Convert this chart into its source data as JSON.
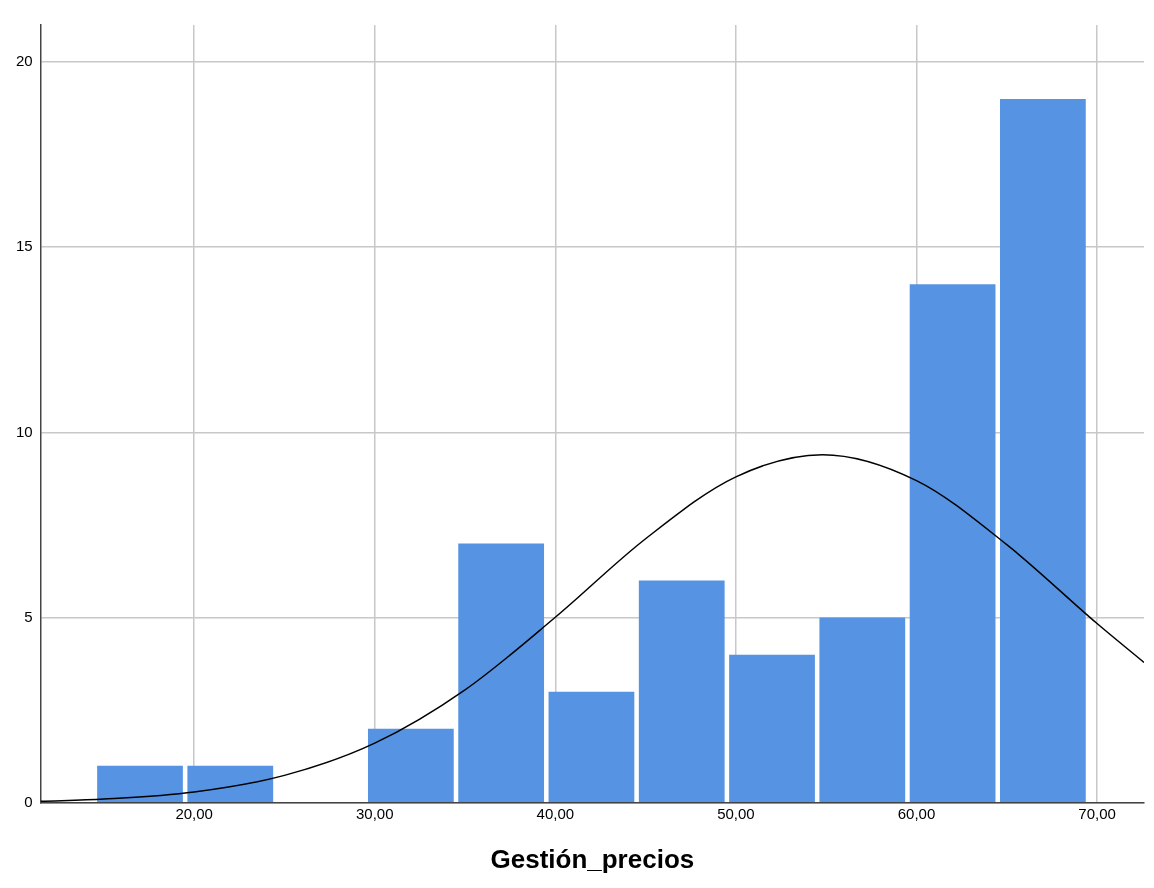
{
  "chart_data": {
    "type": "histogram",
    "xlabel": "Gestión_precios",
    "bins": [
      14.5,
      19.5,
      24.5,
      29.5,
      34.5,
      39.5,
      44.5,
      49.5,
      54.5,
      59.5,
      64.5,
      69.5
    ],
    "values": [
      1,
      1,
      0,
      2,
      7,
      3,
      6,
      4,
      5,
      14,
      19
    ],
    "color": "#5694e3",
    "series": [
      {
        "type": "line",
        "color": "#000000",
        "x": [
          11.5,
          15,
          20,
          25,
          30,
          35,
          40,
          45,
          50,
          54.8,
          60,
          65,
          70,
          72.6
        ],
        "values": [
          0.04,
          0.1,
          0.29,
          0.74,
          1.61,
          3.05,
          5.01,
          7.13,
          8.8,
          9.4,
          8.7,
          6.97,
          4.84,
          3.79
        ]
      }
    ],
    "xlim": [
      11.5,
      72.6
    ],
    "xticks": [
      {
        "value": 20,
        "label": "20,00"
      },
      {
        "value": 30,
        "label": "30,00"
      },
      {
        "value": 40,
        "label": "40,00"
      },
      {
        "value": 50,
        "label": "50,00"
      },
      {
        "value": 60,
        "label": "60,00"
      },
      {
        "value": 70,
        "label": "70,00"
      }
    ],
    "ylim": [
      0,
      21
    ],
    "yticks": [
      0,
      5,
      10,
      15,
      20
    ],
    "grid": true,
    "legend": false,
    "marker": "none"
  }
}
